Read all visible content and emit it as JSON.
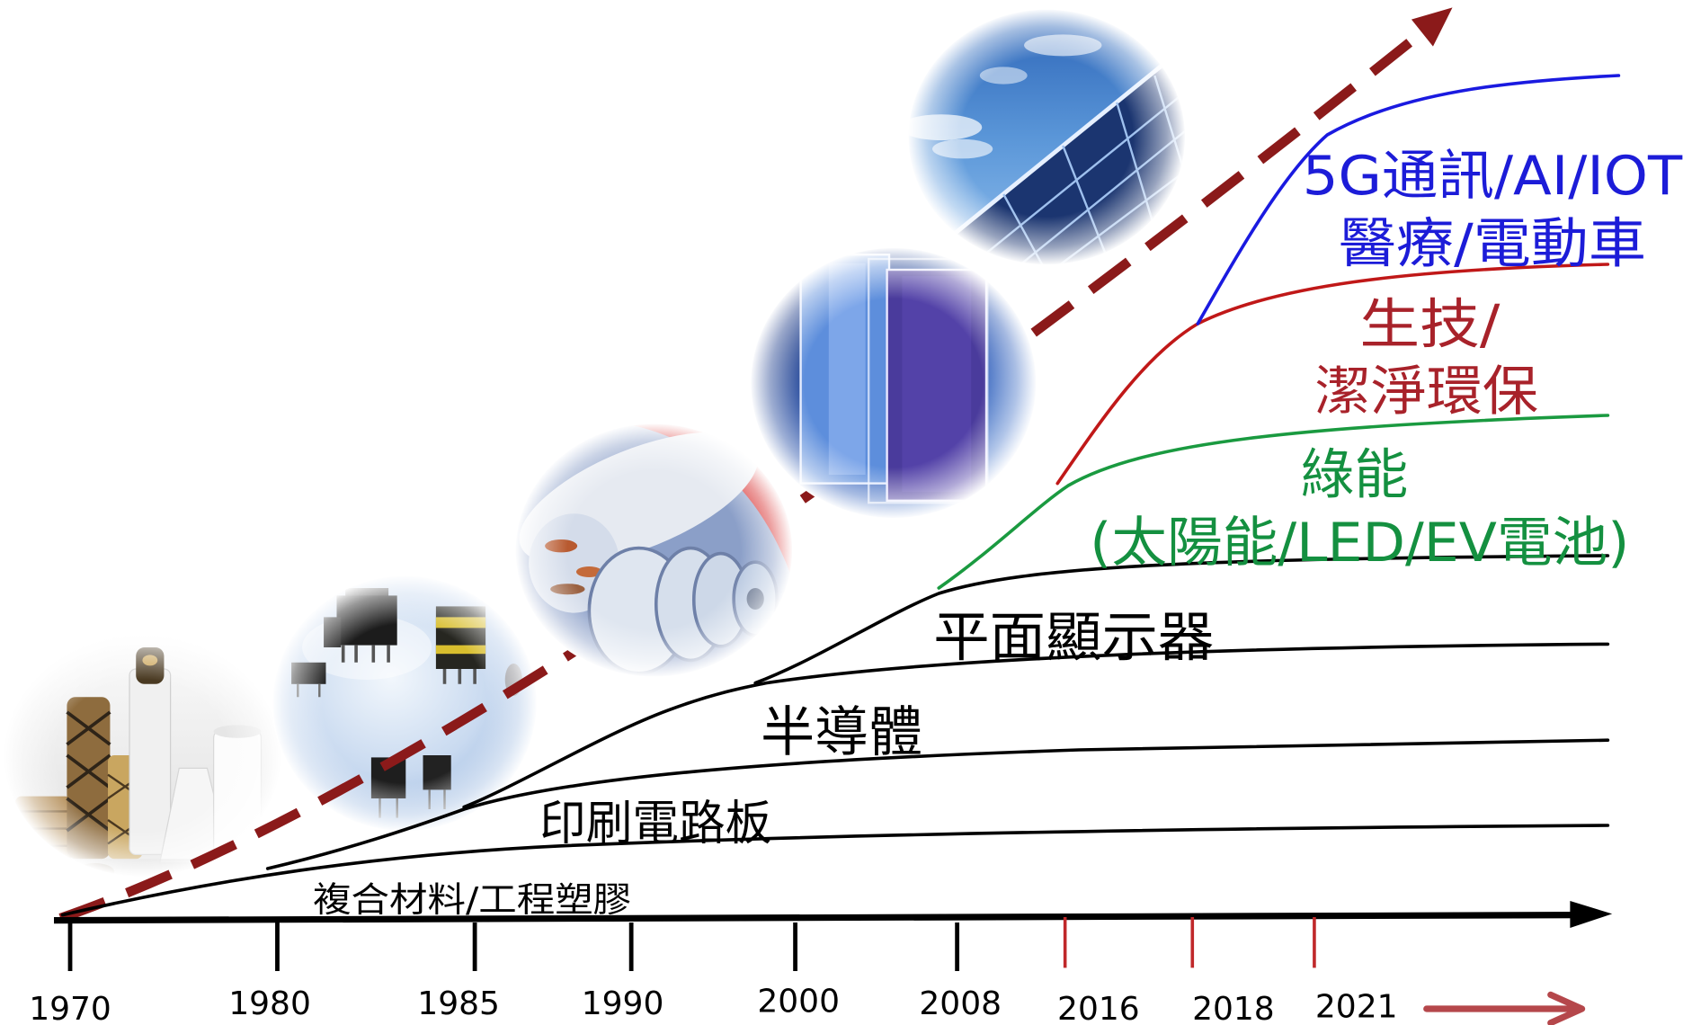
{
  "axis": {
    "years": [
      "1970",
      "1980",
      "1985",
      "1990",
      "2000",
      "2008",
      "2016",
      "2018",
      "2021"
    ],
    "tick_color": "#000000",
    "recent_tick_color": "#c0282a"
  },
  "industries": [
    {
      "lines": [
        "複合材料/工程塑膠"
      ],
      "color": "#000000",
      "curve_color": "#000000"
    },
    {
      "lines": [
        "印刷電路板"
      ],
      "color": "#000000",
      "curve_color": "#000000"
    },
    {
      "lines": [
        "半導體"
      ],
      "color": "#000000",
      "curve_color": "#000000"
    },
    {
      "lines": [
        "平面顯示器"
      ],
      "color": "#000000",
      "curve_color": "#000000"
    },
    {
      "lines": [
        "綠能",
        "(太陽能/LED/EV電池)"
      ],
      "color": "#149040",
      "curve_color": "#1a9a40"
    },
    {
      "lines": [
        "生技/",
        "潔淨環保"
      ],
      "color": "#a8222a",
      "curve_color": "#c01818"
    },
    {
      "lines": [
        "5G通訊/AI/IOT",
        "醫療/電動車"
      ],
      "color": "#1c1cd8",
      "curve_color": "#1a1ae0"
    }
  ],
  "trend_arrow_color": "#8b1a1a",
  "future_arrow_color": "#b5474b",
  "photos": [
    "fiberglass-yarn-photo-icon",
    "electronic-components-photo-icon",
    "optical-discs-photo-icon",
    "display-panels-photo-icon",
    "solar-panel-photo-icon"
  ]
}
